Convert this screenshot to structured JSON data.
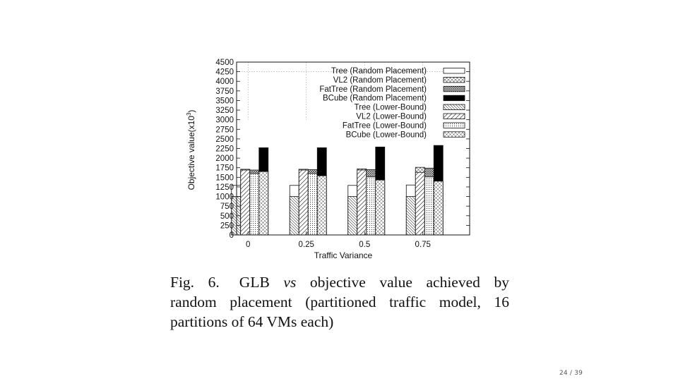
{
  "chart_data": {
    "type": "bar",
    "subtype": "grouped-overlay",
    "xlabel": "Traffic Variance",
    "ylabel": "Objective value(x10",
    "ylabel_superscript": "3",
    "ylabel_suffix": ")",
    "ylim": [
      0,
      4500
    ],
    "y_ticks": [
      "0",
      "250",
      "500",
      "750",
      "1000",
      "1250",
      "1500",
      "1750",
      "2000",
      "2250",
      "2500",
      "2750",
      "3000",
      "3250",
      "3500",
      "3750",
      "4000",
      "4250",
      "4500"
    ],
    "categories": [
      "0",
      "0.25",
      "0.5",
      "0.75"
    ],
    "grid": "dashed vertical and horizontal lines at top region",
    "legend_placement": "top-right",
    "series": [
      {
        "name": "Tree (Random Placement)",
        "pattern": "white",
        "values": [
          1290,
          1290,
          1290,
          1300
        ]
      },
      {
        "name": "VL2 (Random Placement)",
        "pattern": "crosshatch-light",
        "values": [
          1710,
          1710,
          1720,
          1760
        ]
      },
      {
        "name": "FatTree (Random Placement)",
        "pattern": "crosshatch-dense",
        "values": [
          1690,
          1700,
          1700,
          1740
        ]
      },
      {
        "name": "BCube (Random Placement)",
        "pattern": "black",
        "values": [
          2270,
          2270,
          2290,
          2330
        ]
      },
      {
        "name": "Tree (Lower-Bound)",
        "pattern": "diag-backslash-dense",
        "values": [
          1000,
          1000,
          1000,
          1000
        ]
      },
      {
        "name": "VL2 (Lower-Bound)",
        "pattern": "diag-slash",
        "values": [
          1690,
          1690,
          1690,
          1630
        ]
      },
      {
        "name": "FatTree (Lower-Bound)",
        "pattern": "dots",
        "values": [
          1600,
          1600,
          1510,
          1510
        ]
      },
      {
        "name": "BCube (Lower-Bound)",
        "pattern": "diag-crosshatch",
        "values": [
          1650,
          1540,
          1430,
          1400
        ]
      }
    ]
  },
  "caption": {
    "fig_label": "Fig. 6.",
    "line1_pre": "GLB ",
    "line1_italic": "vs",
    "line1_post": " objective value achieved by",
    "line2": "random placement (partitioned traffic model, 16",
    "line3": "partitions of 64 VMs each)"
  },
  "page_number": "24 / 39"
}
